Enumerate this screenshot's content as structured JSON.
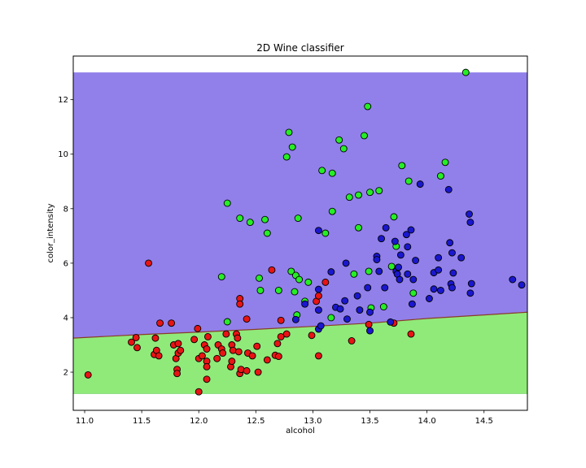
{
  "chart_data": {
    "type": "scatter",
    "title": "2D Wine classifier",
    "xlabel": "alcohol",
    "ylabel": "color_intensity",
    "xlim": [
      10.9,
      14.88
    ],
    "ylim": [
      0.6,
      13.6
    ],
    "x_ticks": [
      11.0,
      11.5,
      12.0,
      12.5,
      13.0,
      13.5,
      14.0,
      14.5
    ],
    "x_tick_labels": [
      "11.0",
      "11.5",
      "12.0",
      "12.5",
      "13.0",
      "13.5",
      "14.0",
      "14.5"
    ],
    "y_ticks": [
      2,
      4,
      6,
      8,
      10,
      12
    ],
    "y_tick_labels": [
      "2",
      "4",
      "6",
      "8",
      "10",
      "12"
    ],
    "grid": false,
    "regions": [
      {
        "name": "purple-region",
        "color": "#9180ea"
      },
      {
        "name": "green-region",
        "color": "#90ea7a"
      }
    ],
    "region_extent": {
      "x": [
        10.9,
        14.88
      ],
      "y": [
        1.2,
        13.0
      ]
    },
    "decision_boundary": {
      "color": "#8b3a2a",
      "points": [
        [
          10.9,
          3.25
        ],
        [
          11.5,
          3.38
        ],
        [
          12.0,
          3.47
        ],
        [
          12.5,
          3.57
        ],
        [
          13.0,
          3.68
        ],
        [
          13.5,
          3.8
        ],
        [
          14.0,
          3.97
        ],
        [
          14.5,
          4.1
        ],
        [
          14.88,
          4.2
        ]
      ]
    },
    "series": [
      {
        "name": "class-red",
        "color": "#e81414",
        "points": [
          [
            11.03,
            1.9
          ],
          [
            11.41,
            3.1
          ],
          [
            11.45,
            3.27
          ],
          [
            11.46,
            2.9
          ],
          [
            11.56,
            6.0
          ],
          [
            11.61,
            2.65
          ],
          [
            11.62,
            3.25
          ],
          [
            11.63,
            2.8
          ],
          [
            11.65,
            2.6
          ],
          [
            11.66,
            3.8
          ],
          [
            11.76,
            3.8
          ],
          [
            11.78,
            3.0
          ],
          [
            11.8,
            2.5
          ],
          [
            11.81,
            2.1
          ],
          [
            11.81,
            1.95
          ],
          [
            11.82,
            3.05
          ],
          [
            11.82,
            2.7
          ],
          [
            11.84,
            2.8
          ],
          [
            11.96,
            3.2
          ],
          [
            11.99,
            3.6
          ],
          [
            12.0,
            2.5
          ],
          [
            12.0,
            1.28
          ],
          [
            12.03,
            2.6
          ],
          [
            12.05,
            3.0
          ],
          [
            12.07,
            2.85
          ],
          [
            12.07,
            2.4
          ],
          [
            12.07,
            2.2
          ],
          [
            12.07,
            1.74
          ],
          [
            12.08,
            3.3
          ],
          [
            12.16,
            2.5
          ],
          [
            12.17,
            3.0
          ],
          [
            12.2,
            2.85
          ],
          [
            12.21,
            2.7
          ],
          [
            12.24,
            3.4
          ],
          [
            12.28,
            2.2
          ],
          [
            12.29,
            2.4
          ],
          [
            12.29,
            3.0
          ],
          [
            12.3,
            2.8
          ],
          [
            12.33,
            3.4
          ],
          [
            12.34,
            3.25
          ],
          [
            12.35,
            2.75
          ],
          [
            12.36,
            4.7
          ],
          [
            12.36,
            4.5
          ],
          [
            12.36,
            1.95
          ],
          [
            12.37,
            2.1
          ],
          [
            12.42,
            2.05
          ],
          [
            12.42,
            3.95
          ],
          [
            12.43,
            2.7
          ],
          [
            12.47,
            2.6
          ],
          [
            12.51,
            2.95
          ],
          [
            12.52,
            2.0
          ],
          [
            12.6,
            2.45
          ],
          [
            12.64,
            5.75
          ],
          [
            12.67,
            2.62
          ],
          [
            12.69,
            3.05
          ],
          [
            12.7,
            2.58
          ],
          [
            12.72,
            3.3
          ],
          [
            12.72,
            3.9
          ],
          [
            12.77,
            3.4
          ],
          [
            12.99,
            3.35
          ],
          [
            13.03,
            4.6
          ],
          [
            13.05,
            4.8
          ],
          [
            13.05,
            2.6
          ],
          [
            13.11,
            5.3
          ],
          [
            13.34,
            3.15
          ],
          [
            13.49,
            3.75
          ],
          [
            13.71,
            3.8
          ],
          [
            13.86,
            3.4
          ]
        ]
      },
      {
        "name": "class-green",
        "color": "#26ee26",
        "points": [
          [
            12.2,
            5.5
          ],
          [
            12.25,
            3.85
          ],
          [
            12.25,
            8.2
          ],
          [
            12.36,
            7.65
          ],
          [
            12.45,
            7.5
          ],
          [
            12.53,
            5.45
          ],
          [
            12.54,
            5.0
          ],
          [
            12.58,
            7.6
          ],
          [
            12.6,
            7.1
          ],
          [
            12.7,
            5.0
          ],
          [
            12.77,
            9.9
          ],
          [
            12.79,
            10.8
          ],
          [
            12.81,
            5.7
          ],
          [
            12.82,
            10.26
          ],
          [
            12.84,
            4.95
          ],
          [
            12.85,
            5.55
          ],
          [
            12.86,
            4.1
          ],
          [
            12.87,
            7.65
          ],
          [
            12.88,
            5.4
          ],
          [
            12.93,
            4.6
          ],
          [
            12.96,
            5.3
          ],
          [
            13.08,
            9.4
          ],
          [
            13.11,
            7.1
          ],
          [
            13.16,
            4.0
          ],
          [
            13.17,
            9.3
          ],
          [
            13.17,
            7.9
          ],
          [
            13.23,
            10.52
          ],
          [
            13.27,
            10.2
          ],
          [
            13.32,
            8.42
          ],
          [
            13.36,
            5.6
          ],
          [
            13.4,
            7.3
          ],
          [
            13.4,
            8.5
          ],
          [
            13.45,
            10.68
          ],
          [
            13.48,
            11.75
          ],
          [
            13.49,
            5.7
          ],
          [
            13.5,
            8.6
          ],
          [
            13.51,
            4.36
          ],
          [
            13.58,
            8.66
          ],
          [
            13.62,
            4.4
          ],
          [
            13.69,
            5.88
          ],
          [
            13.71,
            7.7
          ],
          [
            13.73,
            6.62
          ],
          [
            13.78,
            9.58
          ],
          [
            13.84,
            9.01
          ],
          [
            13.88,
            4.9
          ],
          [
            14.12,
            9.2
          ],
          [
            14.16,
            9.7
          ],
          [
            14.34,
            13.0
          ]
        ]
      },
      {
        "name": "class-blue",
        "color": "#1a17cf",
        "points": [
          [
            12.85,
            3.93
          ],
          [
            12.93,
            4.5
          ],
          [
            13.05,
            7.2
          ],
          [
            13.05,
            4.28
          ],
          [
            13.05,
            5.04
          ],
          [
            13.05,
            3.58
          ],
          [
            13.07,
            3.7
          ],
          [
            13.16,
            5.68
          ],
          [
            13.2,
            4.38
          ],
          [
            13.24,
            4.32
          ],
          [
            13.28,
            4.62
          ],
          [
            13.29,
            6.0
          ],
          [
            13.3,
            3.95
          ],
          [
            13.39,
            4.8
          ],
          [
            13.41,
            4.28
          ],
          [
            13.48,
            5.1
          ],
          [
            13.5,
            4.2
          ],
          [
            13.5,
            3.52
          ],
          [
            13.56,
            6.25
          ],
          [
            13.56,
            6.13
          ],
          [
            13.58,
            5.7
          ],
          [
            13.6,
            6.9
          ],
          [
            13.63,
            5.1
          ],
          [
            13.64,
            7.3
          ],
          [
            13.68,
            3.84
          ],
          [
            13.72,
            6.8
          ],
          [
            13.73,
            5.7
          ],
          [
            13.74,
            5.6
          ],
          [
            13.75,
            5.85
          ],
          [
            13.76,
            5.4
          ],
          [
            13.77,
            6.3
          ],
          [
            13.82,
            7.05
          ],
          [
            13.83,
            6.6
          ],
          [
            13.83,
            5.6
          ],
          [
            13.86,
            7.22
          ],
          [
            13.87,
            4.5
          ],
          [
            13.88,
            5.4
          ],
          [
            13.9,
            6.1
          ],
          [
            13.94,
            8.9
          ],
          [
            14.02,
            4.7
          ],
          [
            14.06,
            5.65
          ],
          [
            14.06,
            5.05
          ],
          [
            14.1,
            6.2
          ],
          [
            14.1,
            5.75
          ],
          [
            14.12,
            5.0
          ],
          [
            14.19,
            8.7
          ],
          [
            14.2,
            6.75
          ],
          [
            14.21,
            5.24
          ],
          [
            14.22,
            6.38
          ],
          [
            14.22,
            5.1
          ],
          [
            14.23,
            5.64
          ],
          [
            14.3,
            6.2
          ],
          [
            14.37,
            7.8
          ],
          [
            14.38,
            7.5
          ],
          [
            14.38,
            4.9
          ],
          [
            14.39,
            5.25
          ],
          [
            14.75,
            5.4
          ],
          [
            14.83,
            5.2
          ]
        ]
      }
    ]
  }
}
